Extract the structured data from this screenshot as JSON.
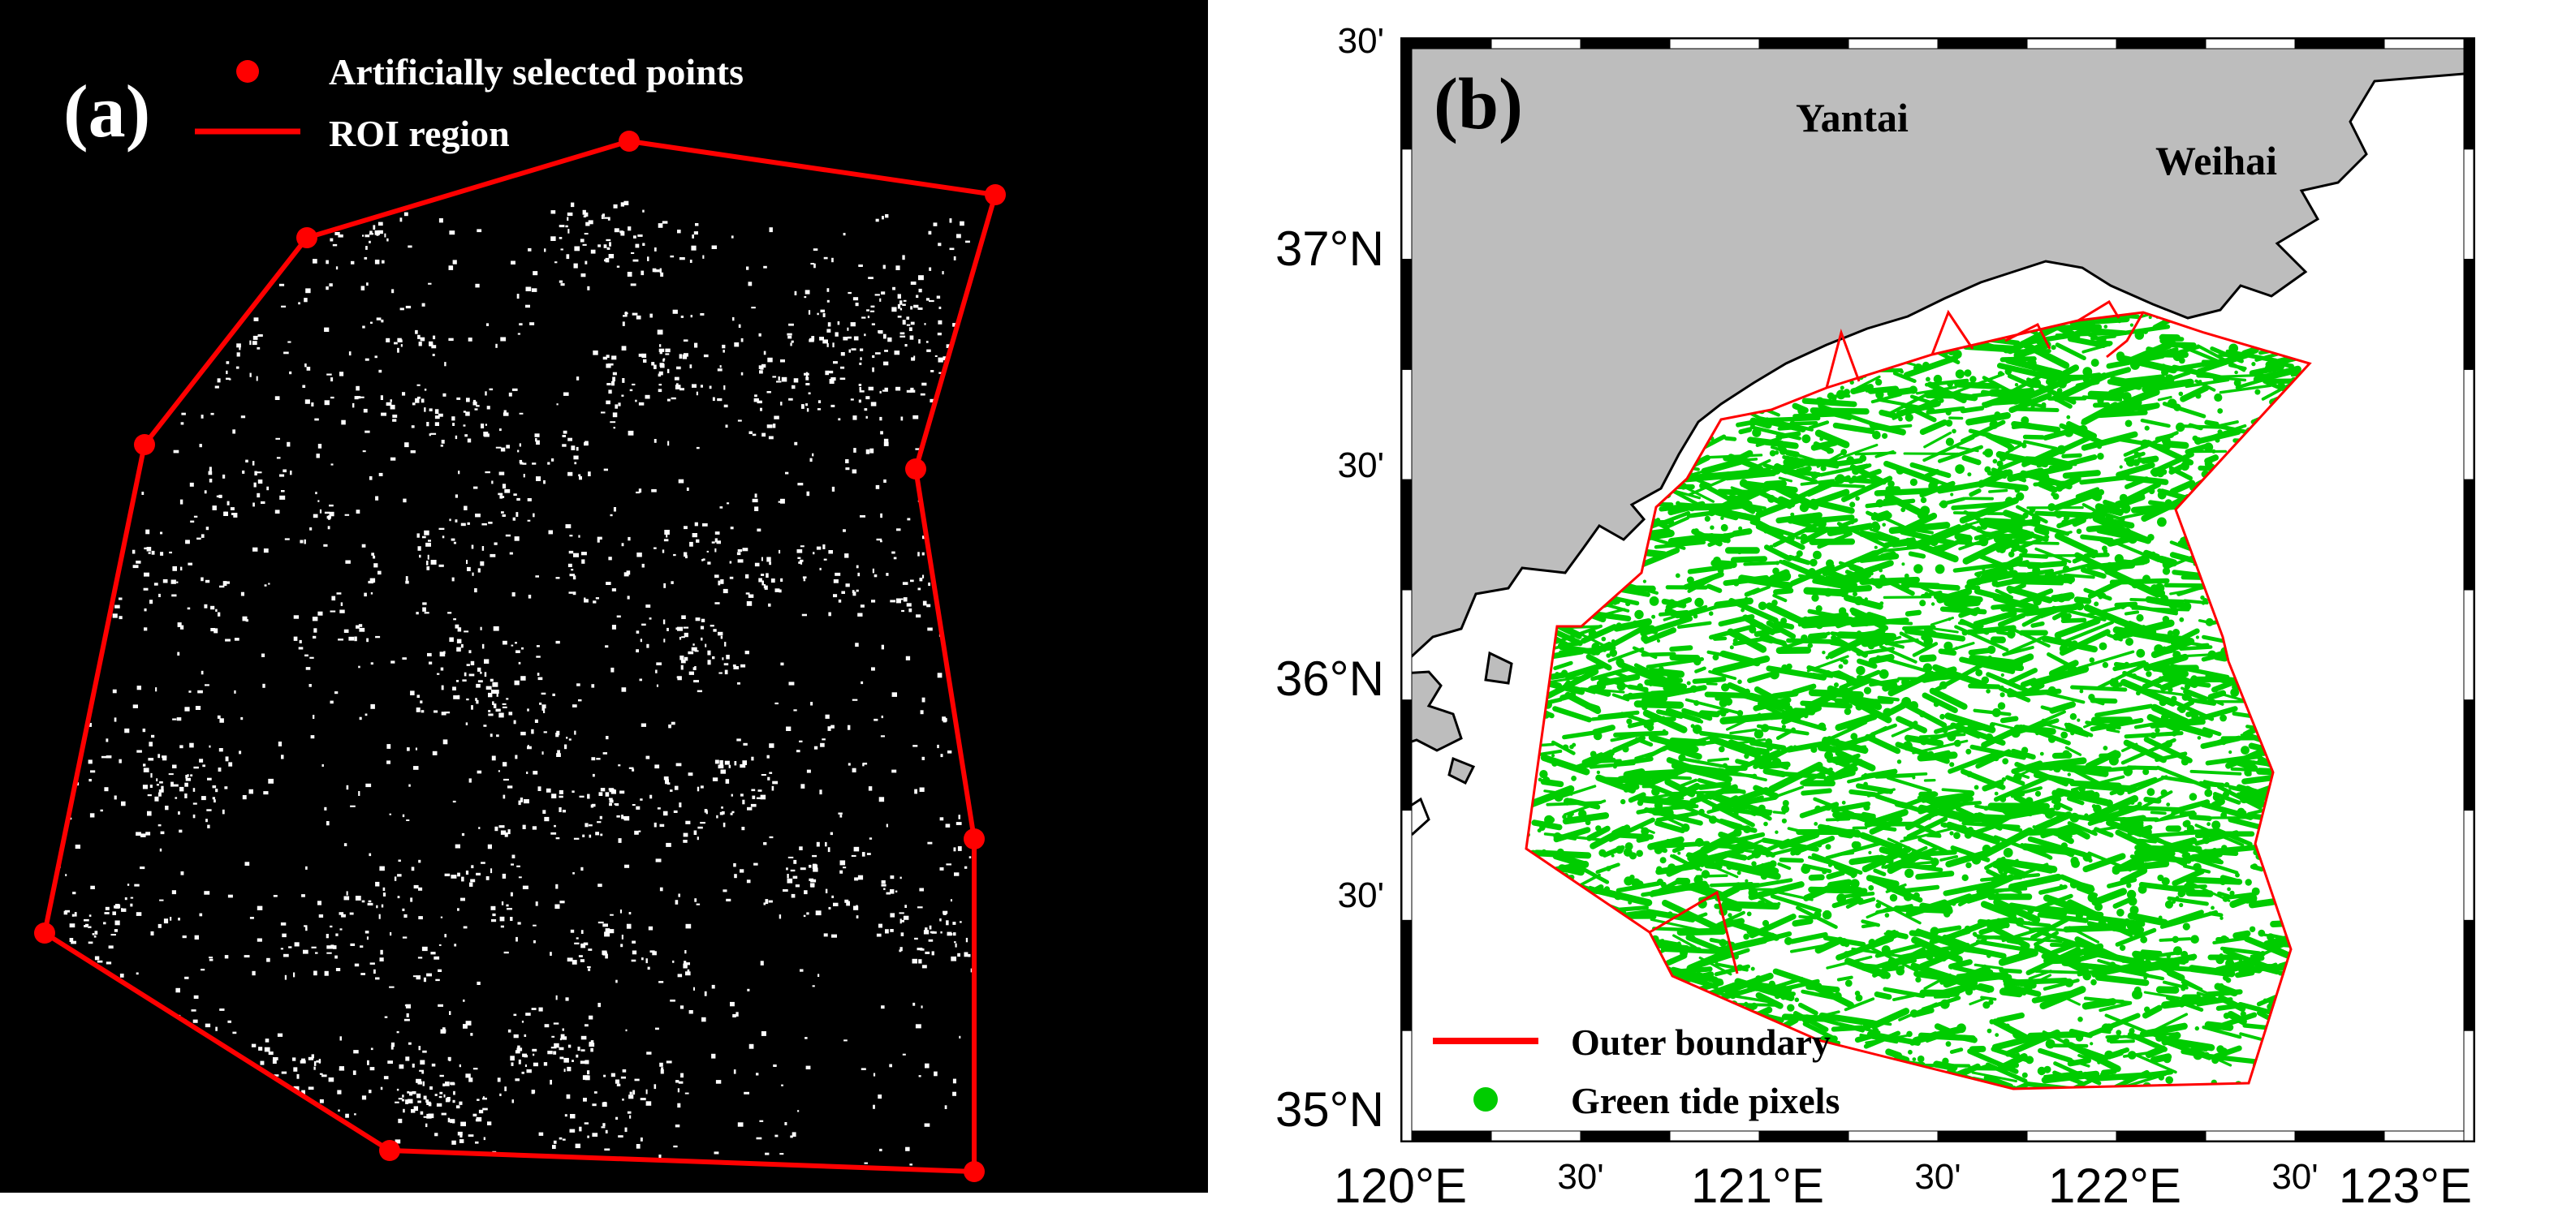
{
  "panel_a": {
    "label": "(a)",
    "legend": [
      {
        "kind": "point",
        "text": "Artificially  selected points",
        "color": "#ff0000"
      },
      {
        "kind": "line",
        "text": "ROI region",
        "color": "#ff0000"
      }
    ]
  },
  "panel_b": {
    "label": "(b)",
    "places": {
      "yantai": "Yantai",
      "weihai": "Weihai"
    },
    "lat_ticks": [
      "30'",
      "37°N",
      "30'",
      "36°N",
      "30'",
      "35°N"
    ],
    "lon_ticks": [
      "120°E",
      "30'",
      "121°E",
      "30'",
      "122°E",
      "30'",
      "123°E"
    ],
    "legend": [
      {
        "kind": "line",
        "text": "Outer boundary",
        "color": "#ff0000"
      },
      {
        "kind": "point",
        "text": "Green tide pixels",
        "color": "#00cc00"
      }
    ],
    "colors": {
      "land": "#bdbdbd",
      "sea": "#ffffff",
      "tide": "#00cc00",
      "boundary": "#ff0000"
    }
  }
}
